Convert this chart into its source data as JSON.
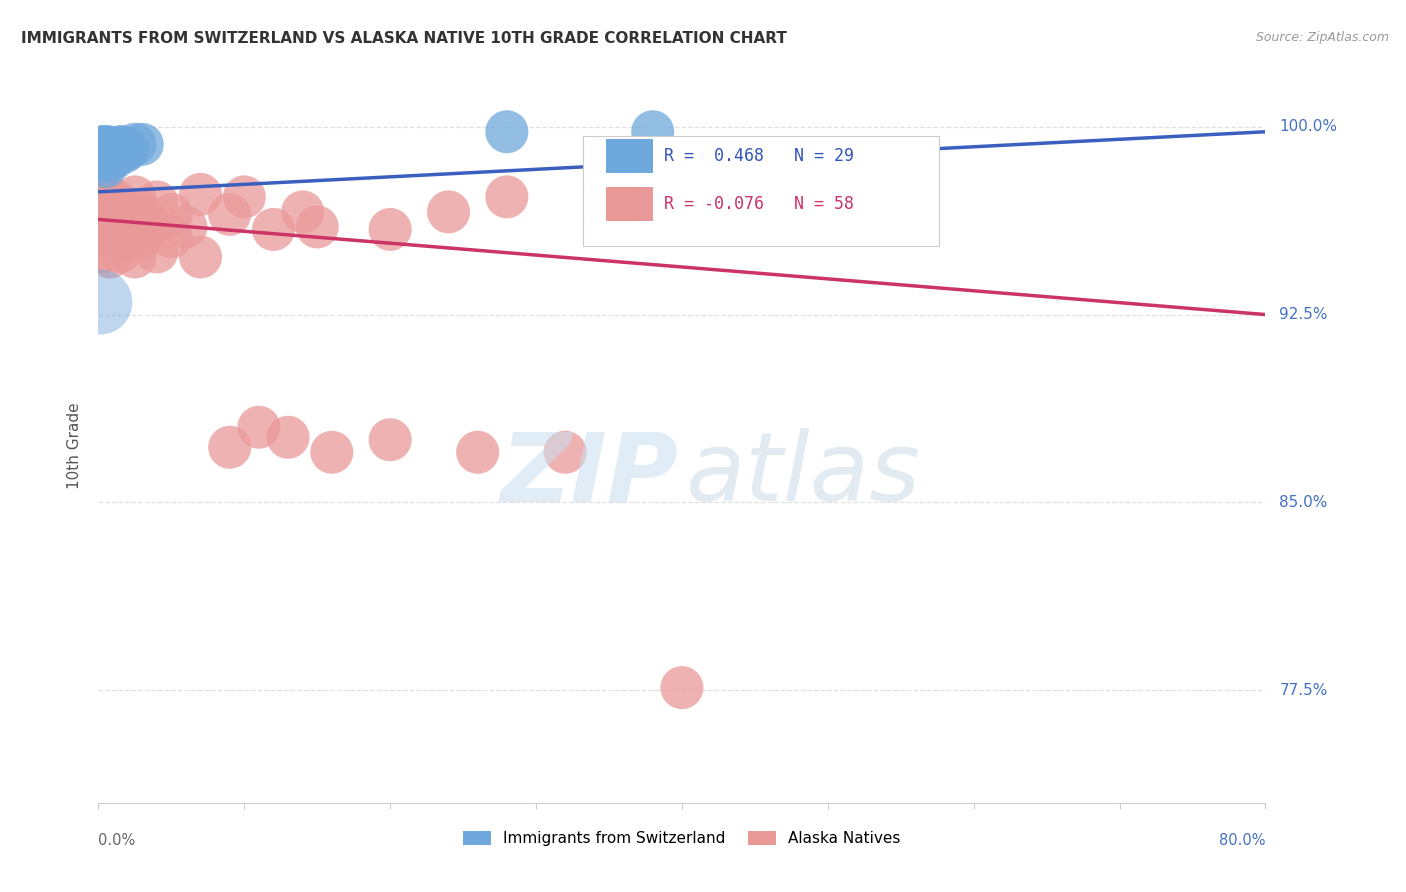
{
  "title": "IMMIGRANTS FROM SWITZERLAND VS ALASKA NATIVE 10TH GRADE CORRELATION CHART",
  "source": "Source: ZipAtlas.com",
  "ylabel": "10th Grade",
  "legend_blue_r": "R =  0.468",
  "legend_blue_n": "N = 29",
  "legend_pink_r": "R = -0.076",
  "legend_pink_n": "N = 58",
  "blue_color": "#6fa8dc",
  "pink_color": "#ea9999",
  "blue_line_color": "#3a5fbf",
  "pink_line_color": "#cc3366",
  "y_tick_labels": [
    "100.0%",
    "92.5%",
    "85.0%",
    "77.5%"
  ],
  "y_tick_values": [
    1.0,
    0.925,
    0.85,
    0.775
  ],
  "xmin": 0.0,
  "xmax": 0.8,
  "ymin": 0.73,
  "ymax": 1.015,
  "grid_color": "#e0e0e0",
  "blue_scatter_x": [
    0.001,
    0.002,
    0.003,
    0.003,
    0.004,
    0.004,
    0.005,
    0.005,
    0.005,
    0.006,
    0.006,
    0.007,
    0.007,
    0.008,
    0.009,
    0.01,
    0.011,
    0.012,
    0.013,
    0.014,
    0.015,
    0.016,
    0.017,
    0.018,
    0.02,
    0.025,
    0.03,
    0.28,
    0.38
  ],
  "blue_scatter_y": [
    0.988,
    0.992,
    0.991,
    0.987,
    0.992,
    0.988,
    0.992,
    0.988,
    0.984,
    0.99,
    0.986,
    0.992,
    0.988,
    0.99,
    0.99,
    0.988,
    0.99,
    0.988,
    0.991,
    0.99,
    0.992,
    0.992,
    0.991,
    0.99,
    0.991,
    0.993,
    0.993,
    0.998,
    0.998
  ],
  "blue_scatter_sizes": [
    80,
    80,
    80,
    80,
    80,
    80,
    80,
    80,
    80,
    80,
    80,
    80,
    80,
    80,
    80,
    80,
    80,
    80,
    80,
    80,
    80,
    80,
    80,
    80,
    80,
    80,
    80,
    80,
    80
  ],
  "blue_large_x": [
    0.001
  ],
  "blue_large_y": [
    0.93
  ],
  "blue_large_size": [
    2200
  ],
  "pink_scatter_x": [
    0.002,
    0.003,
    0.004,
    0.005,
    0.006,
    0.006,
    0.007,
    0.008,
    0.009,
    0.01,
    0.01,
    0.011,
    0.012,
    0.013,
    0.014,
    0.015,
    0.016,
    0.018,
    0.02,
    0.022,
    0.025,
    0.028,
    0.03,
    0.035,
    0.04,
    0.05,
    0.06,
    0.07,
    0.09,
    0.1,
    0.12,
    0.14,
    0.15,
    0.2,
    0.24,
    0.28,
    0.002,
    0.003,
    0.005,
    0.007,
    0.008,
    0.01,
    0.012,
    0.015,
    0.02,
    0.025,
    0.03,
    0.04,
    0.05,
    0.07,
    0.09,
    0.11,
    0.13,
    0.16,
    0.2,
    0.26,
    0.32,
    0.4
  ],
  "pink_scatter_y": [
    0.968,
    0.971,
    0.966,
    0.97,
    0.965,
    0.958,
    0.972,
    0.966,
    0.97,
    0.963,
    0.968,
    0.957,
    0.966,
    0.97,
    0.963,
    0.96,
    0.965,
    0.958,
    0.966,
    0.96,
    0.972,
    0.96,
    0.965,
    0.96,
    0.97,
    0.965,
    0.96,
    0.973,
    0.965,
    0.972,
    0.959,
    0.966,
    0.96,
    0.959,
    0.966,
    0.972,
    0.95,
    0.955,
    0.962,
    0.956,
    0.948,
    0.96,
    0.956,
    0.95,
    0.955,
    0.948,
    0.956,
    0.95,
    0.956,
    0.948,
    0.872,
    0.88,
    0.876,
    0.87,
    0.875,
    0.87,
    0.87,
    0.776
  ],
  "pink_scatter_sizes": [
    80,
    80,
    80,
    80,
    80,
    80,
    80,
    80,
    80,
    80,
    80,
    80,
    80,
    80,
    80,
    80,
    80,
    80,
    80,
    80,
    80,
    80,
    80,
    80,
    80,
    80,
    80,
    80,
    80,
    80,
    80,
    80,
    80,
    80,
    80,
    80,
    80,
    80,
    80,
    80,
    80,
    80,
    80,
    80,
    80,
    80,
    80,
    80,
    80,
    80,
    80,
    80,
    80,
    80,
    80,
    80,
    80,
    80
  ],
  "blue_trend_x": [
    0.0,
    0.8
  ],
  "blue_trend_y": [
    0.974,
    0.998
  ],
  "pink_trend_x": [
    0.0,
    0.8
  ],
  "pink_trend_y": [
    0.963,
    0.925
  ]
}
